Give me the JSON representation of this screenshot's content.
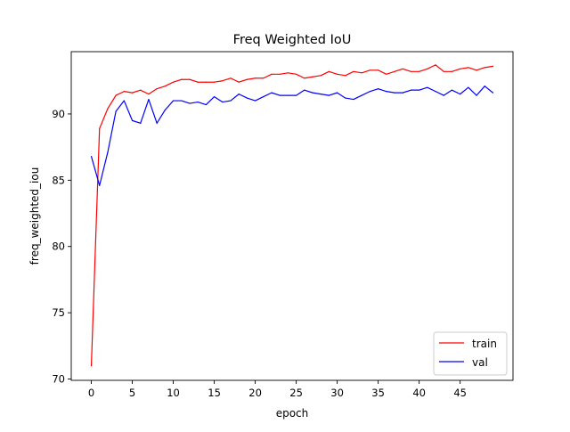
{
  "chart_data": {
    "type": "line",
    "title": "Freq Weighted IoU",
    "xlabel": "epoch",
    "ylabel": "freq_weighted_iou",
    "xlim": [
      -2.45,
      51.45
    ],
    "ylim": [
      69.9,
      94.7
    ],
    "x_ticks": [
      0,
      5,
      10,
      15,
      20,
      25,
      30,
      35,
      40,
      45
    ],
    "y_ticks": [
      70,
      75,
      80,
      85,
      90
    ],
    "grid": false,
    "legend_position": "lower right",
    "x": [
      0,
      1,
      2,
      3,
      4,
      5,
      6,
      7,
      8,
      9,
      10,
      11,
      12,
      13,
      14,
      15,
      16,
      17,
      18,
      19,
      20,
      21,
      22,
      23,
      24,
      25,
      26,
      27,
      28,
      29,
      30,
      31,
      32,
      33,
      34,
      35,
      36,
      37,
      38,
      39,
      40,
      41,
      42,
      43,
      44,
      45,
      46,
      47,
      48,
      49
    ],
    "series": [
      {
        "name": "train",
        "color": "#ff0000",
        "values": [
          71.0,
          88.9,
          90.4,
          91.4,
          91.7,
          91.6,
          91.8,
          91.5,
          91.9,
          92.1,
          92.4,
          92.6,
          92.6,
          92.4,
          92.4,
          92.4,
          92.5,
          92.7,
          92.4,
          92.6,
          92.7,
          92.7,
          93.0,
          93.0,
          93.1,
          93.0,
          92.7,
          92.8,
          92.9,
          93.2,
          93.0,
          92.9,
          93.2,
          93.1,
          93.3,
          93.3,
          93.0,
          93.2,
          93.4,
          93.2,
          93.2,
          93.4,
          93.7,
          93.2,
          93.2,
          93.4,
          93.5,
          93.3,
          93.5,
          93.6
        ]
      },
      {
        "name": "val",
        "color": "#0000ff",
        "values": [
          86.8,
          84.6,
          87.1,
          90.2,
          91.0,
          89.5,
          89.3,
          91.1,
          89.3,
          90.3,
          91.0,
          91.0,
          90.8,
          90.9,
          90.7,
          91.3,
          90.9,
          91.0,
          91.5,
          91.2,
          91.0,
          91.3,
          91.6,
          91.4,
          91.4,
          91.4,
          91.8,
          91.6,
          91.5,
          91.4,
          91.6,
          91.2,
          91.1,
          91.4,
          91.7,
          91.9,
          91.7,
          91.6,
          91.6,
          91.8,
          91.8,
          92.0,
          91.7,
          91.4,
          91.8,
          91.5,
          92.0,
          91.4,
          92.1,
          91.6
        ]
      }
    ]
  }
}
